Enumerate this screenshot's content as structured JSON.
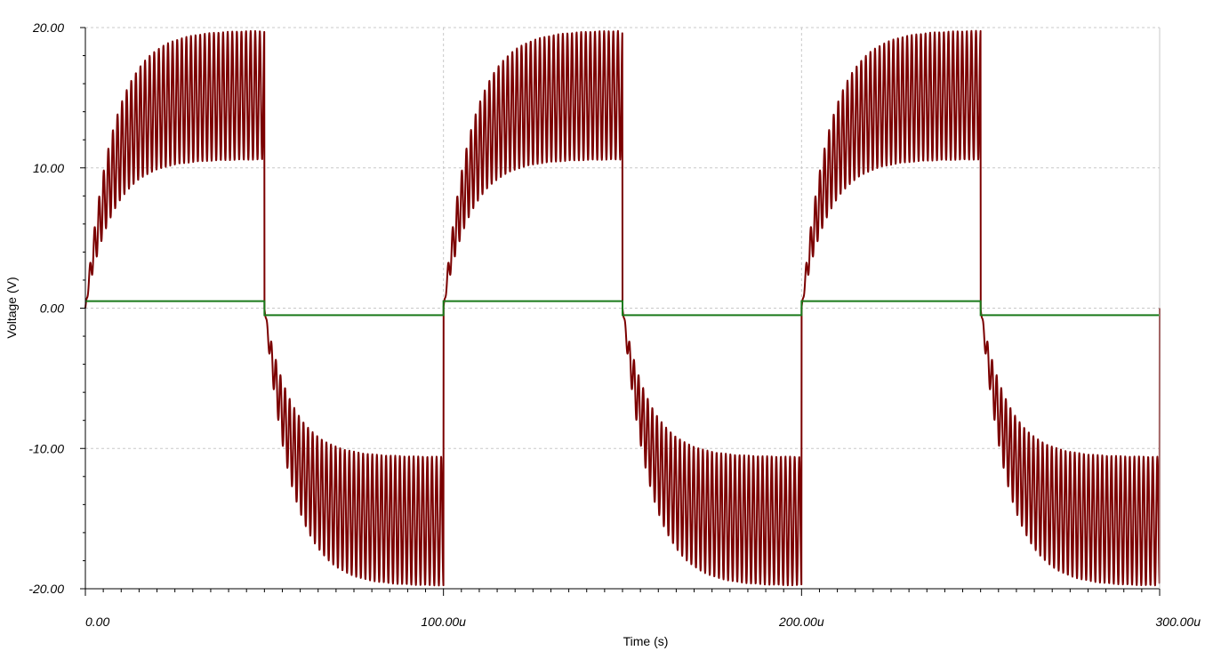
{
  "chart_data": {
    "type": "line",
    "xlabel": "Time (s)",
    "ylabel": "Voltage (V)",
    "xlim": [
      0,
      0.0003
    ],
    "ylim": [
      -20,
      20
    ],
    "grid": true,
    "x_ticks": [
      0,
      0.0001,
      0.0002,
      0.0003
    ],
    "x_tick_labels": [
      "0.00",
      "100.00u",
      "200.00u",
      "300.00u"
    ],
    "y_ticks": [
      20,
      10,
      0,
      -10,
      -20
    ],
    "y_tick_labels": [
      "20.00",
      "10.00",
      "0.00",
      "-10.00",
      "-20.00"
    ],
    "series": [
      {
        "color": "#7b0000",
        "period": 0.0001,
        "carrier_cycles_per_half_period": 39,
        "rise_time_constant": 7.5e-06,
        "envelope_upper_peak": 19.8,
        "envelope_lower_peak": 10.6,
        "envelope_center": 14.5
      },
      {
        "color": "#1a7a1a",
        "period": 0.0001,
        "x": [
          0,
          5e-05,
          5e-05,
          0.0001,
          0.0001,
          0.00015,
          0.00015,
          0.0002,
          0.0002,
          0.00025,
          0.00025,
          0.0003
        ],
        "values": [
          0.5,
          0.5,
          -0.5,
          -0.5,
          0.5,
          0.5,
          -0.5,
          -0.5,
          0.5,
          0.5,
          -0.5,
          -0.5
        ]
      }
    ]
  }
}
